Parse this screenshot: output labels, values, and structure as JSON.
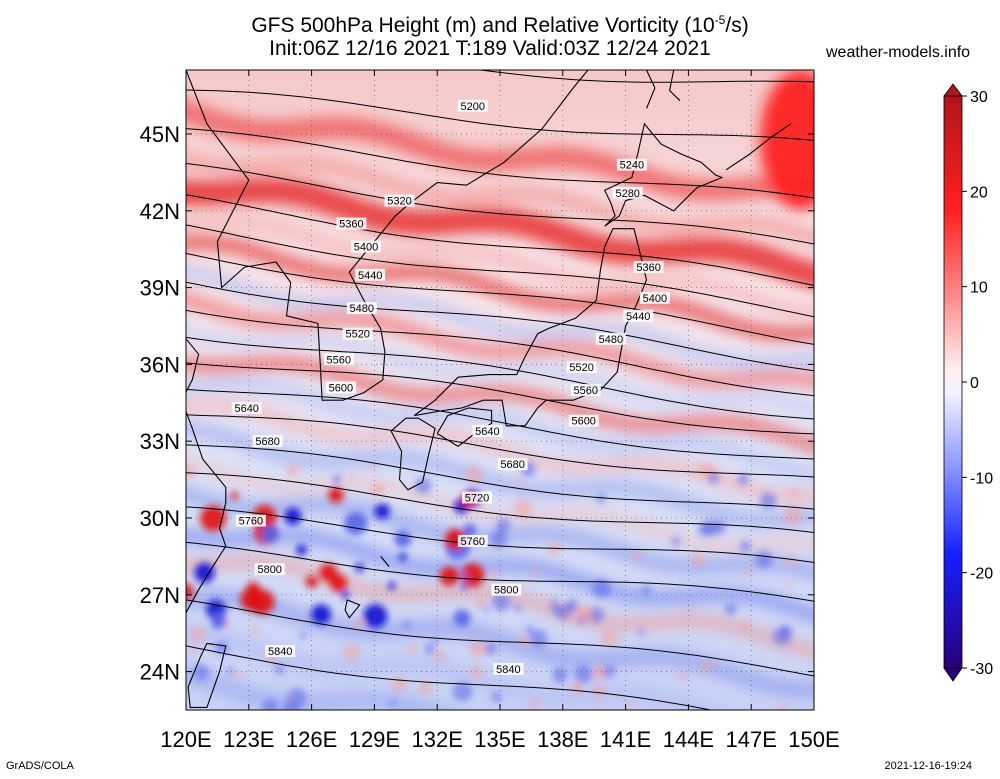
{
  "title": {
    "line1": "GFS 500hPa Height (m) and Relative Vorticity (10",
    "line1_exp": "-5",
    "line1_end": "/s)",
    "line2": "Init:06Z 12/16 2021 T:189 Valid:03Z 12/24 2021"
  },
  "site": "weather-models.info",
  "footer": {
    "left": "GrADS/COLA",
    "right": "2021-12-16-19:24"
  },
  "map": {
    "lon_range": [
      120,
      150
    ],
    "lat_range": [
      22.5,
      47.5
    ],
    "x_ticks": [
      "120E",
      "123E",
      "126E",
      "129E",
      "132E",
      "135E",
      "138E",
      "141E",
      "144E",
      "147E",
      "150E"
    ],
    "x_tick_values": [
      120,
      123,
      126,
      129,
      132,
      135,
      138,
      141,
      144,
      147,
      150
    ],
    "y_ticks": [
      "24N",
      "27N",
      "30N",
      "33N",
      "36N",
      "39N",
      "42N",
      "45N"
    ],
    "y_tick_values": [
      24,
      27,
      30,
      33,
      36,
      39,
      42,
      45
    ]
  },
  "colorbar": {
    "labels": [
      "30",
      "20",
      "10",
      "0",
      "-10",
      "-20",
      "-30"
    ],
    "values": [
      30,
      20,
      10,
      0,
      -10,
      -20,
      -30
    ]
  },
  "contours": [
    {
      "label": "5200",
      "lon": 133.7,
      "lat": 46.1
    },
    {
      "label": "5240",
      "lon": 141.3,
      "lat": 43.8
    },
    {
      "label": "5280",
      "lon": 141.1,
      "lat": 42.7
    },
    {
      "label": "5320",
      "lon": 130.2,
      "lat": 42.4
    },
    {
      "label": "5360",
      "lon": 127.9,
      "lat": 41.5
    },
    {
      "label": "5360",
      "lon": 142.1,
      "lat": 39.8
    },
    {
      "label": "5400",
      "lon": 128.6,
      "lat": 40.6
    },
    {
      "label": "5400",
      "lon": 142.4,
      "lat": 38.6
    },
    {
      "label": "5440",
      "lon": 128.8,
      "lat": 39.5
    },
    {
      "label": "5440",
      "lon": 141.6,
      "lat": 37.9
    },
    {
      "label": "5480",
      "lon": 128.4,
      "lat": 38.2
    },
    {
      "label": "5480",
      "lon": 140.3,
      "lat": 37.0
    },
    {
      "label": "5520",
      "lon": 128.2,
      "lat": 37.2
    },
    {
      "label": "5520",
      "lon": 138.9,
      "lat": 35.9
    },
    {
      "label": "5560",
      "lon": 127.3,
      "lat": 36.2
    },
    {
      "label": "5560",
      "lon": 139.1,
      "lat": 35.0
    },
    {
      "label": "5600",
      "lon": 127.4,
      "lat": 35.1
    },
    {
      "label": "5600",
      "lon": 139.0,
      "lat": 33.8
    },
    {
      "label": "5640",
      "lon": 122.9,
      "lat": 34.3
    },
    {
      "label": "5640",
      "lon": 134.4,
      "lat": 33.4
    },
    {
      "label": "5680",
      "lon": 123.9,
      "lat": 33.0
    },
    {
      "label": "5680",
      "lon": 135.6,
      "lat": 32.1
    },
    {
      "label": "5720",
      "lon": 133.9,
      "lat": 30.8
    },
    {
      "label": "5760",
      "lon": 123.1,
      "lat": 29.9
    },
    {
      "label": "5760",
      "lon": 133.7,
      "lat": 29.1
    },
    {
      "label": "5800",
      "lon": 124.0,
      "lat": 28.0
    },
    {
      "label": "5800",
      "lon": 135.3,
      "lat": 27.2
    },
    {
      "label": "5840",
      "lon": 124.5,
      "lat": 24.8
    },
    {
      "label": "5840",
      "lon": 135.4,
      "lat": 24.1
    }
  ]
}
